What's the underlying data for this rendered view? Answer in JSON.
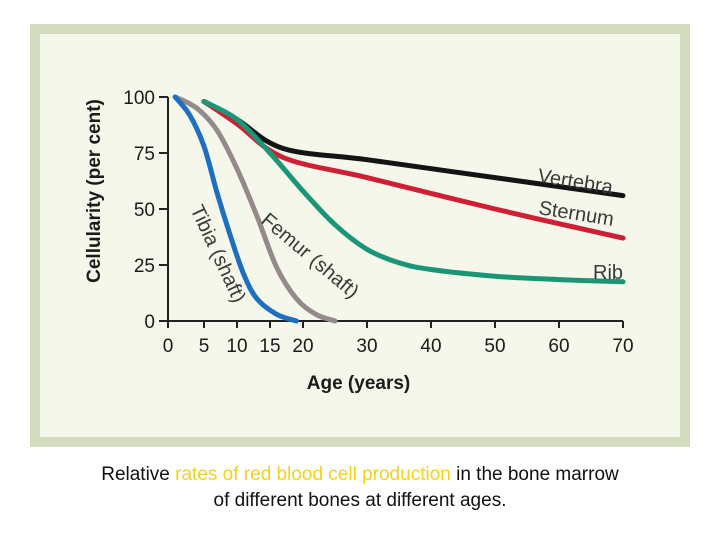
{
  "chart_data": {
    "type": "line",
    "xlabel": "Age (years)",
    "ylabel": "Cellularity (per cent)",
    "xlim": [
      0,
      70
    ],
    "ylim": [
      0,
      100
    ],
    "xticks": [
      0,
      5,
      10,
      15,
      20,
      30,
      40,
      50,
      60,
      70
    ],
    "yticks": [
      0,
      25,
      50,
      75,
      100
    ],
    "grid": false,
    "series": [
      {
        "name": "Vertebra",
        "color": "#141414",
        "x": [
          5,
          10,
          17,
          30,
          50,
          70
        ],
        "y": [
          98,
          90,
          77,
          72,
          64,
          56
        ]
      },
      {
        "name": "Sternum",
        "color": "#d01f35",
        "x": [
          5,
          10,
          17,
          30,
          50,
          70
        ],
        "y": [
          98,
          88,
          73,
          64,
          50,
          37
        ]
      },
      {
        "name": "Rib",
        "color": "#1a9677",
        "x": [
          5,
          10,
          15,
          20,
          25,
          30,
          35,
          40,
          50,
          60,
          70
        ],
        "y": [
          98,
          90,
          75,
          58,
          43,
          32,
          26,
          23,
          20,
          18.5,
          17.5
        ]
      },
      {
        "name": "Femur (shaft)",
        "color": "#958a8a",
        "x": [
          1,
          4,
          7,
          10,
          13,
          16,
          19,
          22,
          25
        ],
        "y": [
          100,
          95,
          85,
          68,
          47,
          24,
          10,
          3,
          0
        ]
      },
      {
        "name": "Tibia (shaft)",
        "color": "#1f6fc0",
        "x": [
          1,
          3,
          5,
          7,
          9,
          11,
          13,
          16,
          19
        ],
        "y": [
          100,
          92,
          78,
          57,
          38,
          21,
          10,
          3,
          0
        ]
      }
    ]
  },
  "caption": {
    "part1": "Relative ",
    "highlight": "rates of red blood cell production",
    "part2": " in the bone marrow",
    "line2": "of different bones at different ages.",
    "highlight_color": "#f2d21a"
  }
}
